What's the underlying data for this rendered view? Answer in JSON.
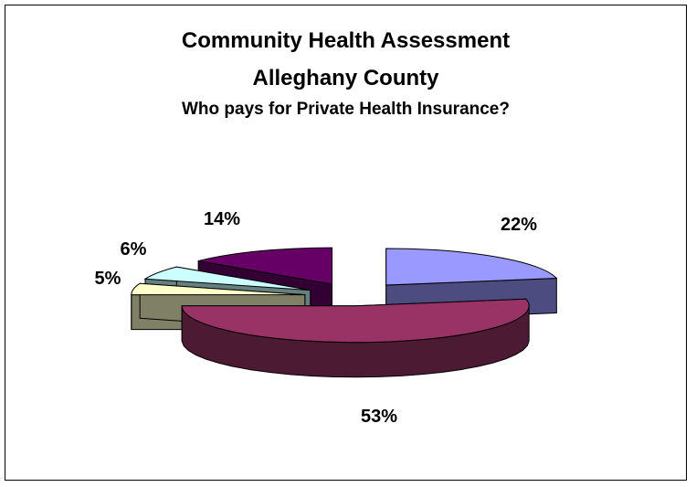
{
  "chart_data": {
    "type": "pie",
    "style": "3d-exploded",
    "title": "Community Health Assessment",
    "subtitle": "Alleghany County",
    "subtitle2": "Who pays for Private Health Insurance?",
    "slices": [
      {
        "value": 22,
        "label": "22%",
        "color": "#9999ff",
        "side_color": "#4c4c80"
      },
      {
        "value": 53,
        "label": "53%",
        "color": "#993366",
        "side_color": "#4d1a33"
      },
      {
        "value": 5,
        "label": "5%",
        "color": "#ffffcc",
        "side_color": "#808066"
      },
      {
        "value": 6,
        "label": "6%",
        "color": "#ccffff",
        "side_color": "#668080"
      },
      {
        "value": 14,
        "label": "14%",
        "color": "#660066",
        "side_color": "#330033"
      }
    ],
    "legend": "none",
    "grid": false
  }
}
